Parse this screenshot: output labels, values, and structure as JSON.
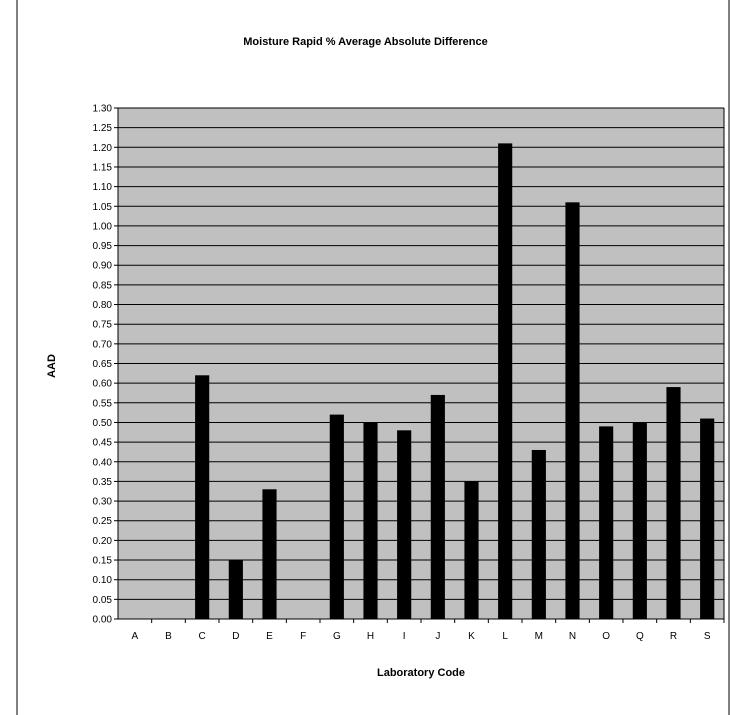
{
  "chart_data": {
    "type": "bar",
    "title": "Moisture Rapid % Average Absolute Difference",
    "xlabel": "Laboratory Code",
    "ylabel": "AAD",
    "ylim": [
      0,
      1.3
    ],
    "ytick_step": 0.05,
    "grid": true,
    "legend": "none",
    "categories": [
      "A",
      "B",
      "C",
      "D",
      "E",
      "F",
      "G",
      "H",
      "I",
      "J",
      "K",
      "L",
      "M",
      "N",
      "O",
      "Q",
      "R",
      "S"
    ],
    "values": [
      0,
      0,
      0.62,
      0.15,
      0.33,
      0,
      0.52,
      0.5,
      0.48,
      0.57,
      0.35,
      1.21,
      0.43,
      1.06,
      0.49,
      0.5,
      0.59,
      0.51
    ],
    "colors": {
      "plot_background": "#c0c0c0",
      "bar": "#000000",
      "gridline": "#000000",
      "page": "#ffffff"
    }
  }
}
